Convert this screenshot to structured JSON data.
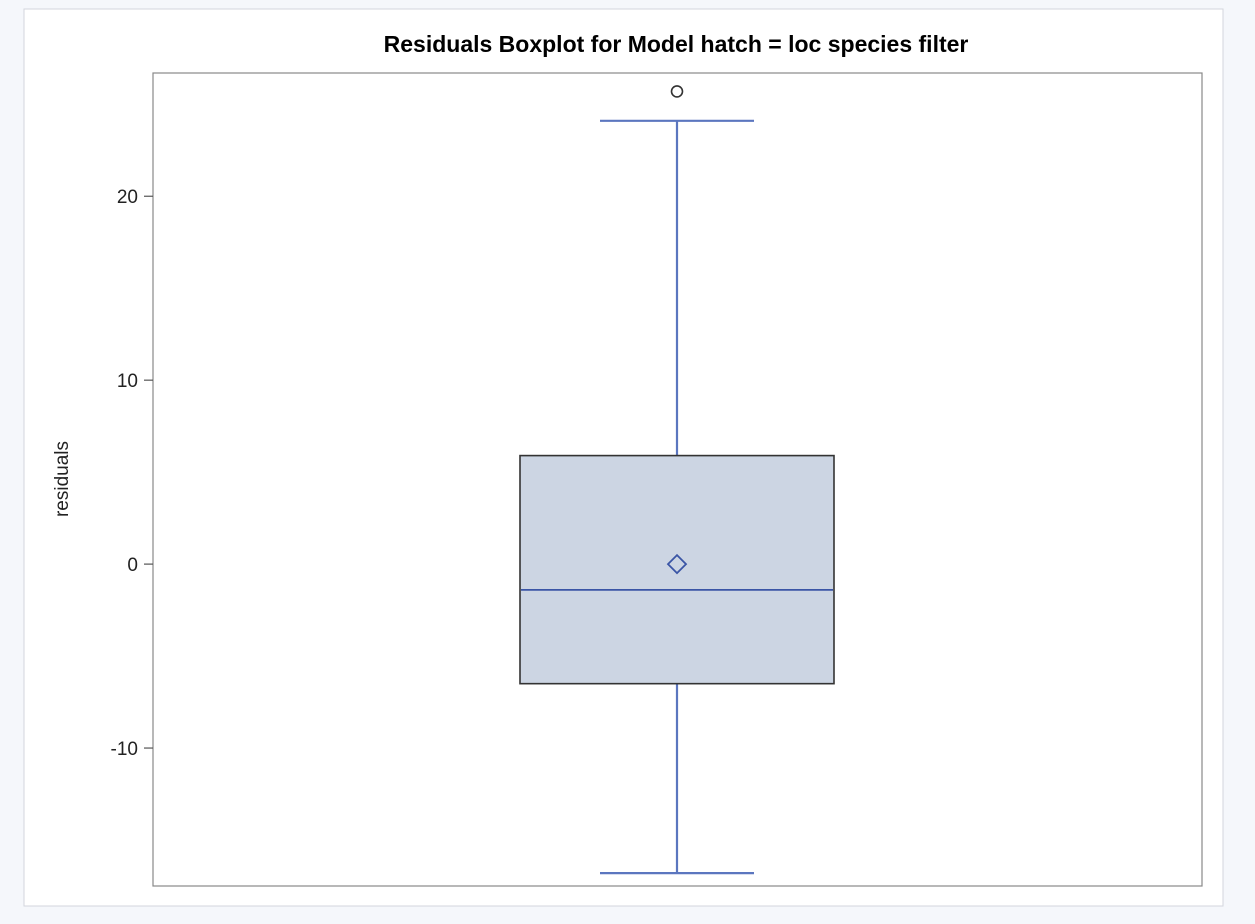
{
  "chart_data": {
    "type": "box",
    "title": "Residuals Boxplot for Model hatch = loc species filter",
    "xlabel": "",
    "ylabel": "residuals",
    "ylim": [
      -17.5,
      26.7
    ],
    "yticks": [
      -10,
      0,
      10,
      20
    ],
    "grid": false,
    "box": {
      "whisker_low": -16.8,
      "q1": -6.5,
      "median": -1.4,
      "mean": 0,
      "q3": 5.9,
      "whisker_high": 24.1,
      "outliers": [
        25.7
      ]
    },
    "colors": {
      "box_fill": "#ccd5e3",
      "box_edge": "#333333",
      "whisker": "#5b76bf",
      "median": "#3a55a6",
      "mean_marker": "#3a55a6",
      "outlier": "#333333",
      "panel_border": "#888888",
      "background": "#f5f7fb"
    }
  }
}
